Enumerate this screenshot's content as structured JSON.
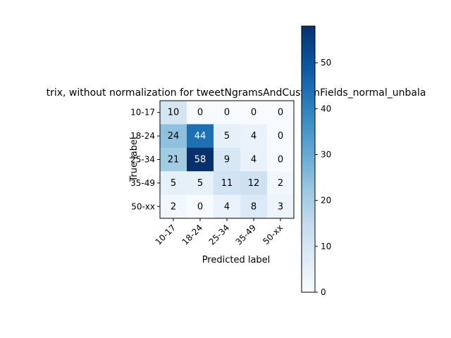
{
  "chart_data": {
    "type": "heatmap",
    "title": "trix, without normalization for tweetNgramsAndCustomFields_normal_unbala",
    "xlabel": "Predicted label",
    "ylabel": "True label",
    "x_categories": [
      "10-17",
      "18-24",
      "25-34",
      "35-49",
      "50-xx"
    ],
    "y_categories": [
      "10-17",
      "18-24",
      "25-34",
      "35-49",
      "50-xx"
    ],
    "values": [
      [
        10,
        0,
        0,
        0,
        0
      ],
      [
        24,
        44,
        5,
        4,
        0
      ],
      [
        21,
        58,
        9,
        4,
        0
      ],
      [
        5,
        5,
        11,
        12,
        2
      ],
      [
        2,
        0,
        4,
        8,
        3
      ]
    ],
    "colormap": "Blues",
    "vmin": 0,
    "vmax": 58,
    "colorbar_ticks": [
      0,
      10,
      20,
      30,
      40,
      50
    ],
    "text_color_dark": "#000000",
    "text_color_light": "#ffffff"
  }
}
